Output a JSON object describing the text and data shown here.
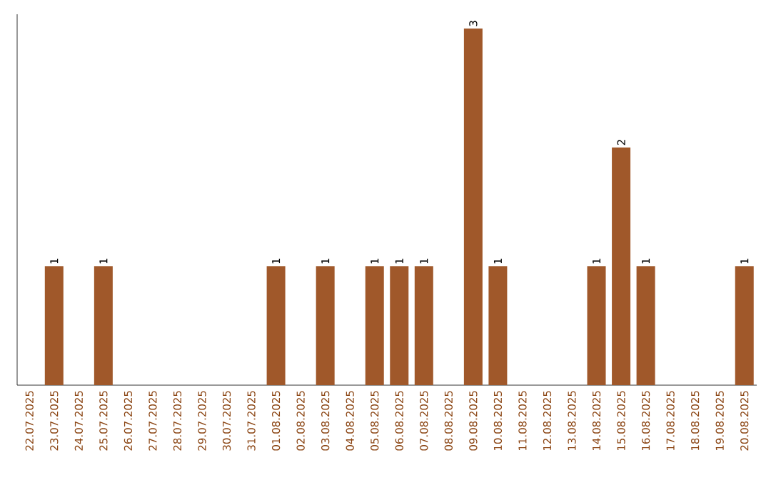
{
  "chart_data": {
    "type": "bar",
    "categories": [
      "22.07.2025",
      "23.07.2025",
      "24.07.2025",
      "25.07.2025",
      "26.07.2025",
      "27.07.2025",
      "28.07.2025",
      "29.07.2025",
      "30.07.2025",
      "31.07.2025",
      "01.08.2025",
      "02.08.2025",
      "03.08.2025",
      "04.08.2025",
      "05.08.2025",
      "06.08.2025",
      "07.08.2025",
      "08.08.2025",
      "09.08.2025",
      "10.08.2025",
      "11.08.2025",
      "12.08.2025",
      "13.08.2025",
      "14.08.2025",
      "15.08.2025",
      "16.08.2025",
      "17.08.2025",
      "18.08.2025",
      "19.08.2025",
      "20.08.2025"
    ],
    "values": [
      0,
      1,
      0,
      1,
      0,
      0,
      0,
      0,
      0,
      0,
      1,
      0,
      1,
      0,
      1,
      1,
      1,
      0,
      3,
      1,
      0,
      0,
      0,
      1,
      2,
      1,
      0,
      0,
      0,
      1
    ],
    "value_labels": [
      null,
      "1",
      null,
      "1",
      null,
      null,
      null,
      null,
      null,
      null,
      "1",
      null,
      "1",
      null,
      "1",
      "1",
      "1",
      null,
      "3",
      "1",
      null,
      null,
      null,
      "1",
      "2",
      "1",
      null,
      null,
      null,
      "1"
    ],
    "color": "#a0582a",
    "tick_labels": "x"
  }
}
